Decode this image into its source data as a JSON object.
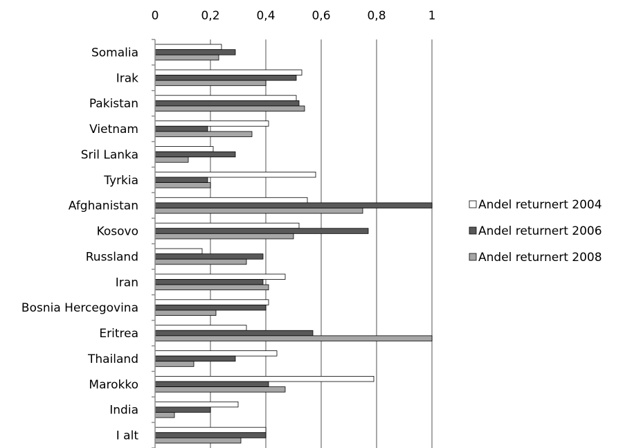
{
  "chart_data": {
    "type": "bar",
    "orientation": "horizontal",
    "x_axis_position": "top",
    "xlim": [
      0,
      1
    ],
    "x_ticks": [
      "0",
      "0,2",
      "0,4",
      "0,6",
      "0,8",
      "1"
    ],
    "grid": true,
    "legend_position": "right",
    "categories": [
      "Somalia",
      "Irak",
      "Pakistan",
      "Vietnam",
      "Sril Lanka",
      "Tyrkia",
      "Afghanistan",
      "Kosovo",
      "Russland",
      "Iran",
      "Bosnia Hercegovina",
      "Eritrea",
      "Thailand",
      "Marokko",
      "India",
      "I alt"
    ],
    "series": [
      {
        "name": "Andel returnert 2004",
        "color": "#ffffff",
        "values": [
          0.24,
          0.53,
          0.51,
          0.41,
          0.21,
          0.58,
          0.55,
          0.52,
          0.17,
          0.47,
          0.41,
          0.33,
          0.44,
          0.79,
          0.3,
          0.4
        ]
      },
      {
        "name": "Andel returnert 2006",
        "color": "#595959",
        "values": [
          0.29,
          0.51,
          0.52,
          0.19,
          0.29,
          0.19,
          1.0,
          0.77,
          0.39,
          0.39,
          0.4,
          0.57,
          0.29,
          0.41,
          0.2,
          0.4
        ]
      },
      {
        "name": "Andel returnert 2008",
        "color": "#a6a6a6",
        "values": [
          0.23,
          0.4,
          0.54,
          0.35,
          0.12,
          0.2,
          0.75,
          0.5,
          0.33,
          0.41,
          0.22,
          1.0,
          0.14,
          0.47,
          0.07,
          0.31
        ]
      }
    ]
  }
}
